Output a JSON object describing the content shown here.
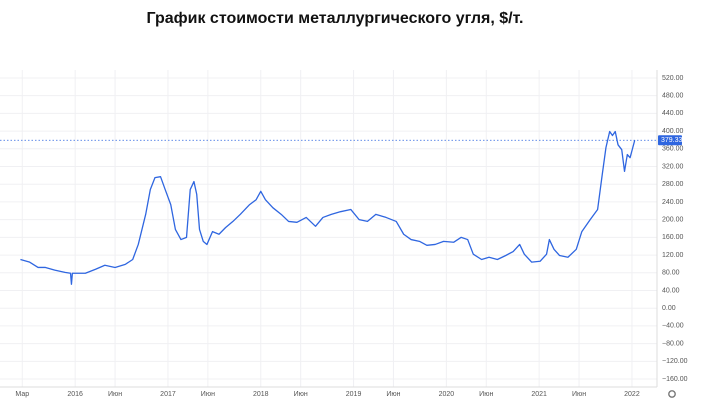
{
  "chart_data": {
    "type": "line",
    "title": "График стоимости металлургического угля, $/т.",
    "color": "#2f66e0",
    "grid": true,
    "x": [
      2015.41,
      2015.51,
      2015.6,
      2015.68,
      2015.78,
      2015.89,
      2015.95,
      2015.96,
      2015.97,
      2016.11,
      2016.22,
      2016.32,
      2016.43,
      2016.54,
      2016.62,
      2016.68,
      2016.76,
      2016.81,
      2016.86,
      2016.92,
      2016.97,
      2017.03,
      2017.08,
      2017.14,
      2017.2,
      2017.24,
      2017.28,
      2017.31,
      2017.34,
      2017.38,
      2017.42,
      2017.48,
      2017.55,
      2017.62,
      2017.7,
      2017.78,
      2017.88,
      2017.95,
      2018.0,
      2018.05,
      2018.13,
      2018.22,
      2018.3,
      2018.39,
      2018.49,
      2018.59,
      2018.67,
      2018.76,
      2018.86,
      2018.97,
      2019.06,
      2019.15,
      2019.24,
      2019.35,
      2019.46,
      2019.54,
      2019.62,
      2019.71,
      2019.79,
      2019.88,
      2019.97,
      2020.08,
      2020.16,
      2020.23,
      2020.29,
      2020.38,
      2020.46,
      2020.55,
      2020.64,
      2020.72,
      2020.79,
      2020.84,
      2020.92,
      2021.01,
      2021.08,
      2021.11,
      2021.16,
      2021.22,
      2021.31,
      2021.4,
      2021.46,
      2021.55,
      2021.63,
      2021.68,
      2021.72,
      2021.76,
      2021.79,
      2021.82,
      2021.85,
      2021.89,
      2021.92,
      2021.95,
      2021.98,
      2022.03
    ],
    "values": [
      110,
      104,
      92,
      92,
      86,
      81,
      79,
      54,
      79,
      79,
      88,
      97,
      92,
      99,
      110,
      144,
      212,
      268,
      295,
      297,
      268,
      234,
      178,
      155,
      160,
      268,
      286,
      257,
      178,
      151,
      144,
      173,
      167,
      182,
      196,
      212,
      234,
      245,
      264,
      245,
      227,
      212,
      196,
      194,
      205,
      185,
      205,
      212,
      218,
      223,
      200,
      196,
      212,
      205,
      196,
      167,
      155,
      151,
      142,
      144,
      151,
      149,
      160,
      155,
      122,
      110,
      115,
      110,
      119,
      128,
      144,
      122,
      104,
      106,
      122,
      155,
      133,
      119,
      115,
      133,
      173,
      200,
      223,
      302,
      363,
      399,
      390,
      399,
      369,
      358,
      309,
      347,
      340,
      379.33
    ],
    "last_value": 379.33,
    "xlim": [
      2015.19,
      2022.27
    ],
    "xticks": [
      {
        "value": 2015.43,
        "label": "Мар"
      },
      {
        "value": 2016,
        "label": "2016"
      },
      {
        "value": 2016.43,
        "label": "Июн"
      },
      {
        "value": 2017,
        "label": "2017"
      },
      {
        "value": 2017.43,
        "label": "Июн"
      },
      {
        "value": 2018,
        "label": "2018"
      },
      {
        "value": 2018.43,
        "label": "Июн"
      },
      {
        "value": 2019,
        "label": "2019"
      },
      {
        "value": 2019.43,
        "label": "Июн"
      },
      {
        "value": 2020,
        "label": "2020"
      },
      {
        "value": 2020.43,
        "label": "Июн"
      },
      {
        "value": 2021,
        "label": "2021"
      },
      {
        "value": 2021.43,
        "label": "Июн"
      },
      {
        "value": 2022,
        "label": "2022"
      }
    ],
    "ylim": [
      -178,
      538
    ],
    "yticks": [
      {
        "value": 520,
        "label": "520.00"
      },
      {
        "value": 480,
        "label": "480.00"
      },
      {
        "value": 440,
        "label": "440.00"
      },
      {
        "value": 400,
        "label": "400.00"
      },
      {
        "value": 360,
        "label": "360.00"
      },
      {
        "value": 320,
        "label": "320.00"
      },
      {
        "value": 280,
        "label": "280.00"
      },
      {
        "value": 240,
        "label": "240.00"
      },
      {
        "value": 200,
        "label": "200.00"
      },
      {
        "value": 160,
        "label": "160.00"
      },
      {
        "value": 120,
        "label": "120.00"
      },
      {
        "value": 80,
        "label": "80.00"
      },
      {
        "value": 40,
        "label": "40.00"
      },
      {
        "value": 0,
        "label": "0.00"
      },
      {
        "value": -40,
        "label": "−40.00"
      },
      {
        "value": -80,
        "label": "−80.00"
      },
      {
        "value": -120,
        "label": "−120.00"
      },
      {
        "value": -160,
        "label": "−160.00"
      }
    ]
  }
}
